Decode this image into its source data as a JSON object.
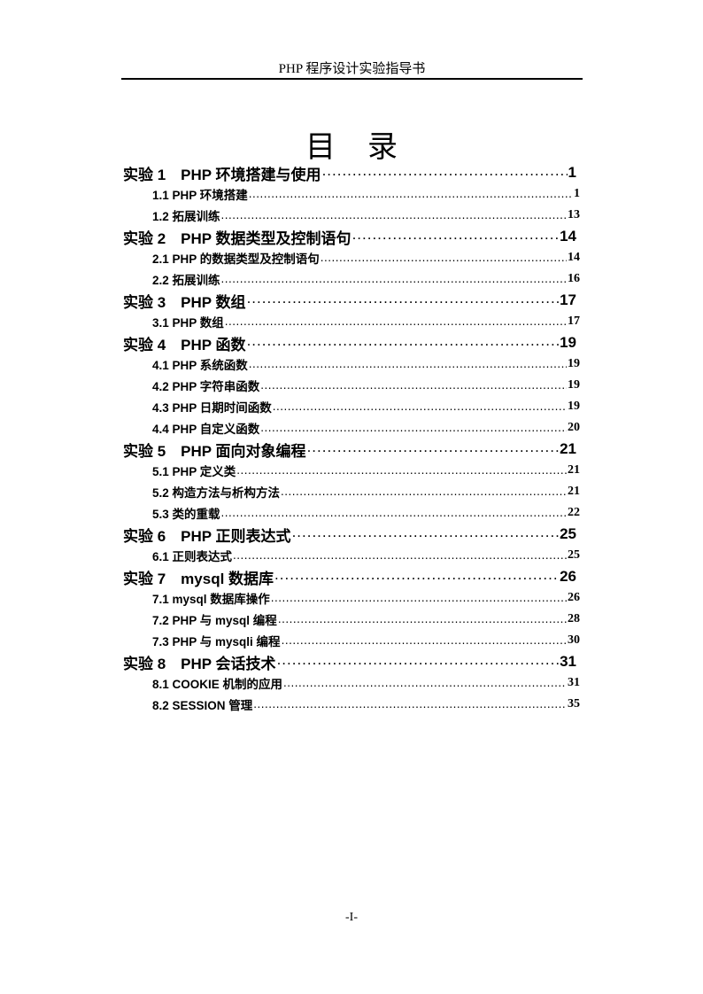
{
  "header": {
    "running_title": "PHP 程序设计实验指导书"
  },
  "title": {
    "part1": "目",
    "part2": "录"
  },
  "toc": [
    {
      "level": 1,
      "label": "实验 1　PHP 环境搭建与使用",
      "page": "1"
    },
    {
      "level": 2,
      "label": "1.1 PHP 环境搭建",
      "page": "1"
    },
    {
      "level": 2,
      "label": "1.2  拓展训练",
      "page": "13"
    },
    {
      "level": 1,
      "label": "实验 2　PHP 数据类型及控制语句",
      "page": "14"
    },
    {
      "level": 2,
      "label": "2.1 PHP 的数据类型及控制语句",
      "page": "14"
    },
    {
      "level": 2,
      "label": "2.2  拓展训练",
      "page": "16"
    },
    {
      "level": 1,
      "label": "实验 3　PHP 数组",
      "page": "17"
    },
    {
      "level": 2,
      "label": "3.1 PHP 数组",
      "page": "17"
    },
    {
      "level": 1,
      "label": "实验 4　PHP 函数",
      "page": "19"
    },
    {
      "level": 2,
      "label": "4.1 PHP 系统函数",
      "page": "19"
    },
    {
      "level": 2,
      "label": "4.2 PHP 字符串函数",
      "page": "19"
    },
    {
      "level": 2,
      "label": "4.3 PHP 日期时间函数",
      "page": "19"
    },
    {
      "level": 2,
      "label": "4.4 PHP 自定义函数",
      "page": "20"
    },
    {
      "level": 1,
      "label": "实验 5　PHP 面向对象编程",
      "page": "21"
    },
    {
      "level": 2,
      "label": "5.1 PHP 定义类",
      "page": "21"
    },
    {
      "level": 2,
      "label": "5.2  构造方法与析构方法",
      "page": "21"
    },
    {
      "level": 2,
      "label": "5.3  类的重载",
      "page": "22"
    },
    {
      "level": 1,
      "label": "实验 6　PHP 正则表达式",
      "page": "25"
    },
    {
      "level": 2,
      "label": "6.1 正则表达式",
      "page": "25"
    },
    {
      "level": 1,
      "label": "实验 7　mysql 数据库",
      "page": "26"
    },
    {
      "level": 2,
      "label": "7.1 mysql 数据库操作",
      "page": "26"
    },
    {
      "level": 2,
      "label": "7.2 PHP 与 mysql 编程",
      "page": "28"
    },
    {
      "level": 2,
      "label": "7.3 PHP 与 mysqli 编程",
      "page": "30"
    },
    {
      "level": 1,
      "label": "实验 8　PHP 会话技术",
      "page": "31"
    },
    {
      "level": 2,
      "label": "8.1 COOKIE 机制的应用",
      "page": "31"
    },
    {
      "level": 2,
      "label": "8.2 SESSION 管理",
      "page": "35"
    }
  ],
  "footer": {
    "page_number": "-I-"
  }
}
